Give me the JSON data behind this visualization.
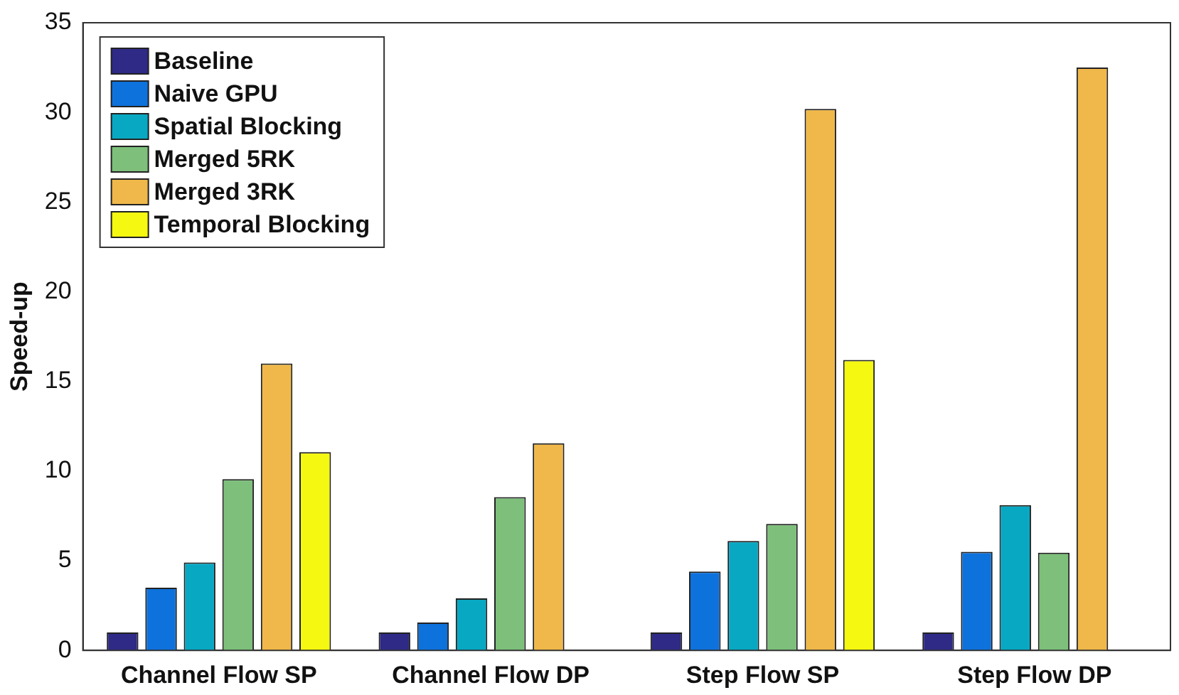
{
  "chart_data": {
    "type": "bar",
    "ylabel": "Speed-up",
    "categories": [
      "Channel Flow SP",
      "Channel Flow DP",
      "Step Flow SP",
      "Step Flow DP"
    ],
    "series": [
      {
        "name": "Baseline",
        "color": "#2e2a86",
        "values": [
          1,
          1,
          1,
          1
        ]
      },
      {
        "name": "Naive GPU",
        "color": "#0e72dc",
        "values": [
          3.5,
          1.55,
          4.4,
          5.5
        ]
      },
      {
        "name": "Spatial Blocking",
        "color": "#08a8c3",
        "values": [
          4.9,
          2.9,
          6.1,
          8.1
        ]
      },
      {
        "name": "Merged 5RK",
        "color": "#7dbf7b",
        "values": [
          9.55,
          8.55,
          7.05,
          5.45
        ]
      },
      {
        "name": "Merged 3RK",
        "color": "#f0b84a",
        "values": [
          16,
          11.55,
          30.2,
          32.5
        ]
      },
      {
        "name": "Temporal Blocking",
        "color": "#f5f810",
        "values": [
          11.05,
          0,
          16.2,
          0
        ]
      }
    ],
    "ylim": [
      0,
      35
    ],
    "yticks": [
      0,
      5,
      10,
      15,
      20,
      25,
      30,
      35
    ],
    "grid": false,
    "legend": "top left"
  }
}
